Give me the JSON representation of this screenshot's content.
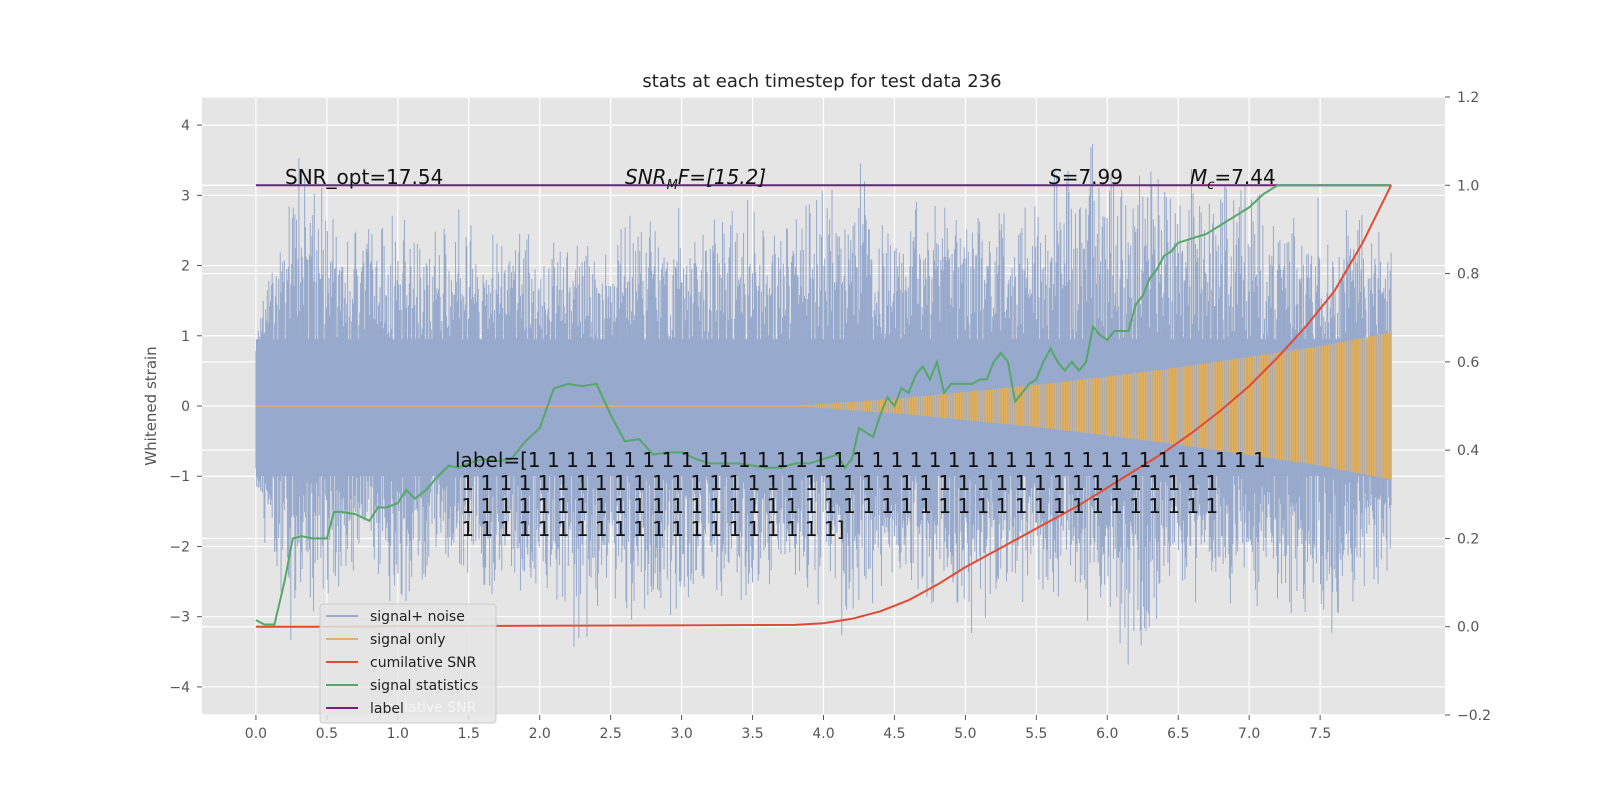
{
  "chart_data": {
    "type": "line",
    "title": "stats at each timestep for test data 236",
    "ylabel": "Whitened strain",
    "xlabel": "",
    "xlim": [
      -0.38,
      8.38
    ],
    "ylim": [
      -4.4,
      4.4
    ],
    "y2lim": [
      -0.2,
      1.2
    ],
    "x_ticks": [
      "0.0",
      "0.5",
      "1.0",
      "1.5",
      "2.0",
      "2.5",
      "3.0",
      "3.5",
      "4.0",
      "4.5",
      "5.0",
      "5.5",
      "6.0",
      "6.5",
      "7.0",
      "7.5"
    ],
    "y_ticks": [
      "4",
      "3",
      "2",
      "1",
      "0",
      "−1",
      "−2",
      "−3",
      "−4"
    ],
    "y2_ticks": [
      "1.2",
      "1.0",
      "0.8",
      "0.6",
      "0.4",
      "0.2",
      "0.0",
      "−0.2"
    ],
    "grid": true,
    "legend_position": "lower-left",
    "annotations": {
      "snr_opt": "SNR_opt=17.54",
      "snr_mf": "SNR",
      "snr_mf_sub": "M",
      "snr_mf_rest": "F=[15.2]",
      "s_italic": "S",
      "s_value": "=7.99",
      "mc_italic": "M",
      "mc_sub": "c",
      "mc_value": "=7.44",
      "label_lines": [
        "label=[1 1 1 1 1 1 1 1 1 1 1 1 1 1 1 1 1 1 1 1 1 1 1 1 1 1 1 1 1 1 1 1 1 1 1 1 1 1 1",
        " 1 1 1 1 1 1 1 1 1 1 1 1 1 1 1 1 1 1 1 1 1 1 1 1 1 1 1 1 1 1 1 1 1 1 1 1 1 1 1 1",
        " 1 1 1 1 1 1 1 1 1 1 1 1 1 1 1 1 1 1 1 1 1 1 1 1 1 1 1 1 1 1 1 1 1 1 1 1 1 1 1 1",
        " 1 1 1 1 1 1 1 1 1 1 1 1 1 1 1 1 1 1 1 1]"
      ]
    },
    "series": [
      {
        "name": "signal+ noise",
        "color": "#97a9cc",
        "axis": "left",
        "envelope_points": [
          [
            0.0,
            1.0,
            -1.5
          ],
          [
            0.25,
            3.7,
            -3.4
          ],
          [
            0.5,
            3.3,
            -3.0
          ],
          [
            0.75,
            2.6,
            -2.5
          ],
          [
            1.0,
            2.8,
            -3.1
          ],
          [
            1.25,
            2.9,
            -2.6
          ],
          [
            1.5,
            3.0,
            -2.4
          ],
          [
            1.75,
            2.6,
            -3.4
          ],
          [
            2.0,
            2.6,
            -2.6
          ],
          [
            2.25,
            2.4,
            -3.6
          ],
          [
            2.5,
            2.7,
            -3.0
          ],
          [
            2.75,
            3.0,
            -3.3
          ],
          [
            3.0,
            2.9,
            -3.9
          ],
          [
            3.25,
            3.1,
            -2.9
          ],
          [
            3.5,
            3.1,
            -3.0
          ],
          [
            3.75,
            2.9,
            -2.8
          ],
          [
            4.0,
            3.3,
            -2.9
          ],
          [
            4.25,
            3.6,
            -3.8
          ],
          [
            4.5,
            2.9,
            -2.7
          ],
          [
            4.75,
            3.2,
            -3.0
          ],
          [
            5.0,
            3.1,
            -3.5
          ],
          [
            5.25,
            3.0,
            -3.0
          ],
          [
            5.5,
            3.2,
            -2.7
          ],
          [
            5.75,
            3.7,
            -3.1
          ],
          [
            6.0,
            4.05,
            -3.3
          ],
          [
            6.25,
            3.6,
            -4.1
          ],
          [
            6.5,
            3.6,
            -3.0
          ],
          [
            6.75,
            3.6,
            -3.0
          ],
          [
            7.0,
            3.3,
            -3.0
          ],
          [
            7.25,
            3.0,
            -3.1
          ],
          [
            7.5,
            3.0,
            -3.3
          ],
          [
            7.75,
            3.0,
            -3.2
          ],
          [
            8.0,
            2.6,
            -2.5
          ]
        ]
      },
      {
        "name": "signal only",
        "color": "#e3b05e",
        "axis": "left",
        "amplitude_points": [
          [
            0.0,
            0.0
          ],
          [
            3.8,
            0.0
          ],
          [
            4.2,
            0.06
          ],
          [
            4.6,
            0.12
          ],
          [
            5.0,
            0.2
          ],
          [
            5.5,
            0.3
          ],
          [
            6.0,
            0.42
          ],
          [
            6.5,
            0.55
          ],
          [
            7.0,
            0.7
          ],
          [
            7.5,
            0.85
          ],
          [
            8.0,
            1.05
          ]
        ]
      },
      {
        "name": "cumilative SNR",
        "color": "#e24a33",
        "axis": "right",
        "x": [
          0.0,
          0.5,
          1.0,
          2.0,
          3.0,
          3.8,
          4.0,
          4.2,
          4.4,
          4.6,
          4.8,
          5.0,
          5.2,
          5.4,
          5.6,
          5.8,
          6.0,
          6.2,
          6.4,
          6.6,
          6.8,
          7.0,
          7.2,
          7.4,
          7.6,
          7.8,
          8.0
        ],
        "values": [
          0.0,
          0.0,
          0.001,
          0.002,
          0.003,
          0.004,
          0.008,
          0.018,
          0.035,
          0.06,
          0.095,
          0.135,
          0.17,
          0.205,
          0.24,
          0.275,
          0.315,
          0.355,
          0.395,
          0.44,
          0.49,
          0.545,
          0.61,
          0.68,
          0.76,
          0.87,
          1.0
        ]
      },
      {
        "name": "signal statistics",
        "color": "#55a868",
        "axis": "right",
        "x": [
          0.0,
          0.06,
          0.13,
          0.2,
          0.26,
          0.32,
          0.4,
          0.5,
          0.55,
          0.6,
          0.7,
          0.8,
          0.86,
          0.92,
          1.0,
          1.06,
          1.12,
          1.2,
          1.28,
          1.36,
          1.43,
          1.5,
          1.6,
          1.7,
          1.8,
          1.9,
          2.0,
          2.1,
          2.2,
          2.3,
          2.4,
          2.5,
          2.6,
          2.7,
          2.8,
          2.9,
          3.0,
          3.1,
          3.2,
          3.3,
          3.4,
          3.5,
          3.6,
          3.7,
          3.8,
          3.9,
          4.0,
          4.1,
          4.15,
          4.2,
          4.25,
          4.3,
          4.35,
          4.4,
          4.45,
          4.5,
          4.55,
          4.6,
          4.65,
          4.7,
          4.75,
          4.8,
          4.85,
          4.9,
          4.95,
          5.0,
          5.05,
          5.1,
          5.15,
          5.2,
          5.25,
          5.3,
          5.35,
          5.4,
          5.45,
          5.5,
          5.55,
          5.6,
          5.65,
          5.7,
          5.75,
          5.8,
          5.85,
          5.9,
          5.95,
          6.0,
          6.05,
          6.1,
          6.15,
          6.2,
          6.25,
          6.3,
          6.35,
          6.4,
          6.45,
          6.5,
          6.6,
          6.7,
          6.8,
          6.9,
          7.0,
          7.1,
          7.2,
          7.3,
          7.4,
          7.5,
          7.6,
          8.0
        ],
        "values": [
          0.015,
          0.005,
          0.005,
          0.1,
          0.2,
          0.205,
          0.2,
          0.2,
          0.26,
          0.26,
          0.255,
          0.24,
          0.27,
          0.27,
          0.28,
          0.31,
          0.29,
          0.31,
          0.34,
          0.365,
          0.36,
          0.37,
          0.38,
          0.375,
          0.38,
          0.42,
          0.45,
          0.54,
          0.55,
          0.545,
          0.55,
          0.48,
          0.42,
          0.425,
          0.39,
          0.395,
          0.395,
          0.38,
          0.37,
          0.37,
          0.37,
          0.365,
          0.36,
          0.36,
          0.37,
          0.37,
          0.38,
          0.39,
          0.36,
          0.38,
          0.45,
          0.44,
          0.43,
          0.48,
          0.52,
          0.5,
          0.54,
          0.53,
          0.57,
          0.59,
          0.56,
          0.6,
          0.53,
          0.55,
          0.55,
          0.55,
          0.55,
          0.56,
          0.56,
          0.6,
          0.62,
          0.6,
          0.51,
          0.53,
          0.55,
          0.56,
          0.6,
          0.63,
          0.6,
          0.58,
          0.6,
          0.58,
          0.6,
          0.68,
          0.66,
          0.65,
          0.67,
          0.67,
          0.67,
          0.73,
          0.75,
          0.79,
          0.81,
          0.84,
          0.85,
          0.87,
          0.88,
          0.89,
          0.91,
          0.93,
          0.95,
          0.98,
          1.0,
          1.0,
          1.0,
          1.0,
          1.0,
          1.0
        ]
      },
      {
        "name": "label",
        "color": "#7b1e7a",
        "axis": "right",
        "x": [
          0.0,
          8.0
        ],
        "values": [
          1.0,
          1.0
        ]
      }
    ],
    "legend_hidden_entry": "cumilative SNR"
  }
}
